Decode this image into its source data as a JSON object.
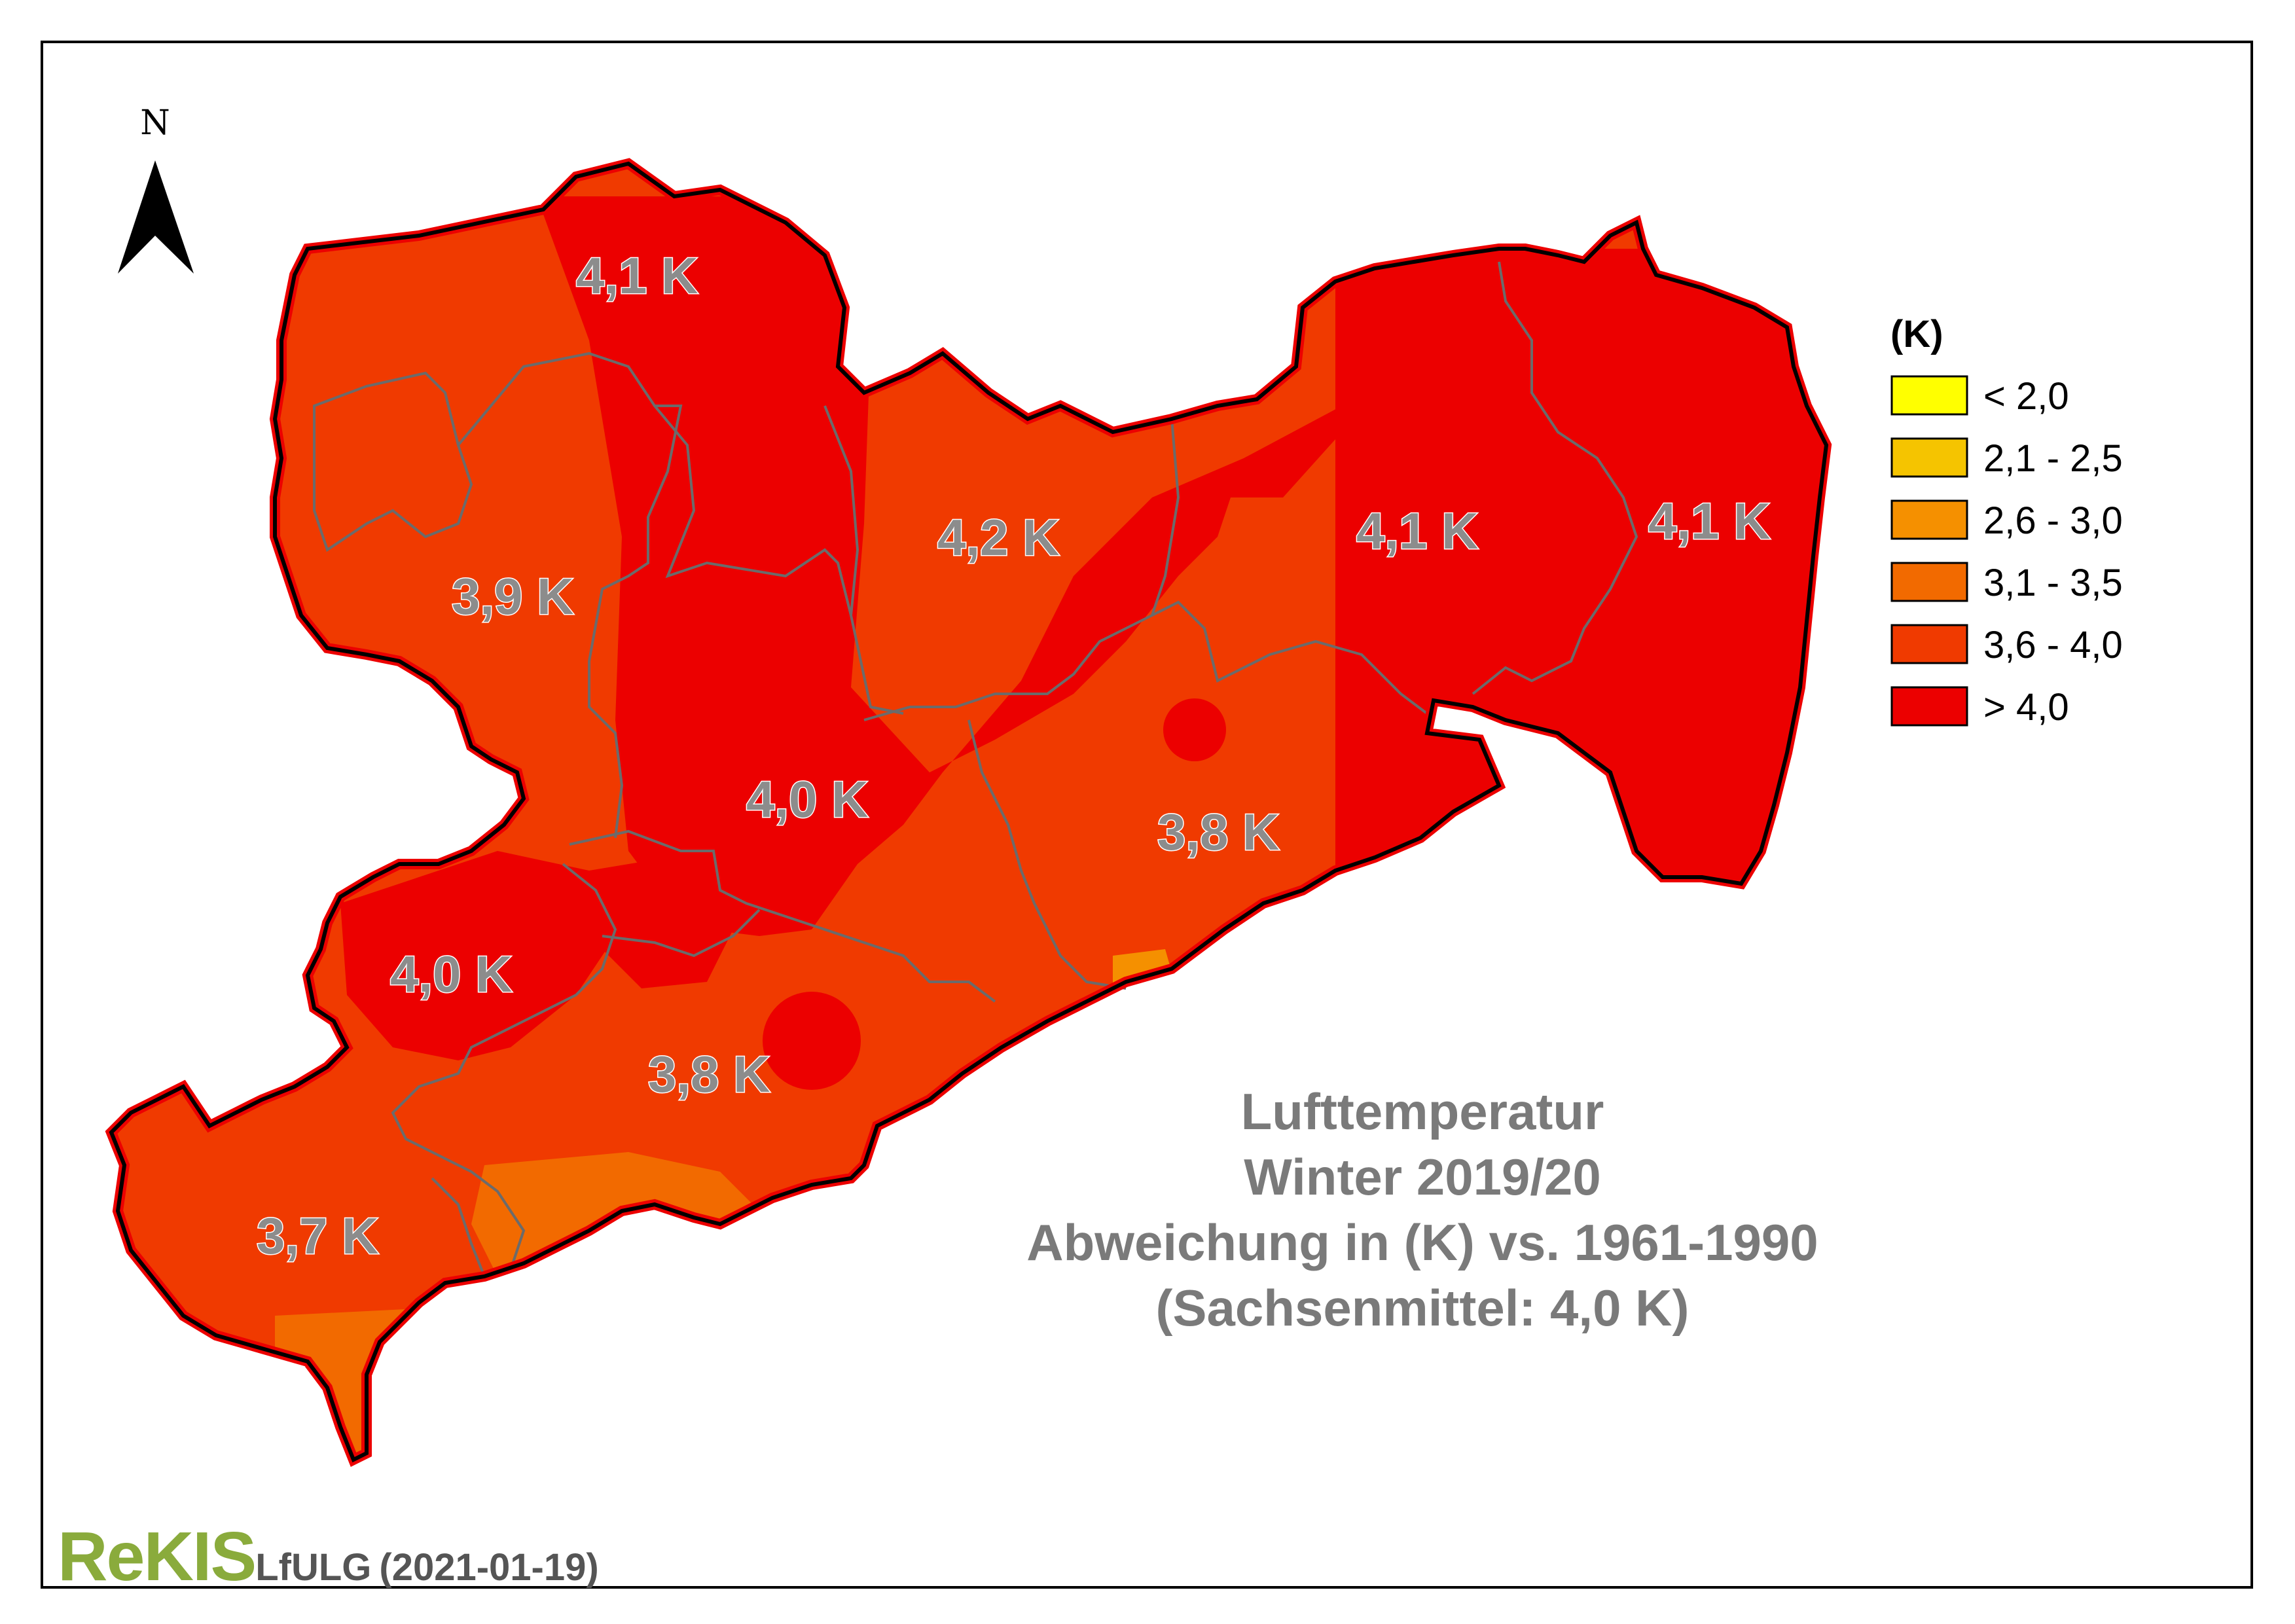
{
  "map": {
    "title_lines": [
      "Lufttemperatur",
      "Winter 2019/20",
      "Abweichung in (K) vs. 1961-1990",
      "(Sachsenmittel: 4,0 K)"
    ],
    "north_arrow_label": "N",
    "region_labels": [
      "4,1 K",
      "3,9 K",
      "4,2 K",
      "4,1 K",
      "4,1 K",
      "4,0 K",
      "3,8 K",
      "4,0 K",
      "3,8 K",
      "3,7 K"
    ]
  },
  "legend": {
    "title": "(K)",
    "items": [
      {
        "label": "< 2,0",
        "color": "#ffff00"
      },
      {
        "label": "2,1 - 2,5",
        "color": "#f5c400"
      },
      {
        "label": "2,6 - 3,0",
        "color": "#f59000"
      },
      {
        "label": "3,1 - 3,5",
        "color": "#f26a00"
      },
      {
        "label": "3,6 - 4,0",
        "color": "#f03a00"
      },
      {
        "label": "> 4,0",
        "color": "#ec0000"
      }
    ]
  },
  "colors": {
    "class_3_6_4_0": "#f03a00",
    "class_gt_4_0": "#ec0000",
    "class_3_1_3_5": "#f26a00",
    "district_border": "#6b6b6b",
    "state_border": "#000000"
  },
  "footer": {
    "logo_text": "ReKIS",
    "org": "LfULG",
    "date": "(2021-01-19)"
  }
}
